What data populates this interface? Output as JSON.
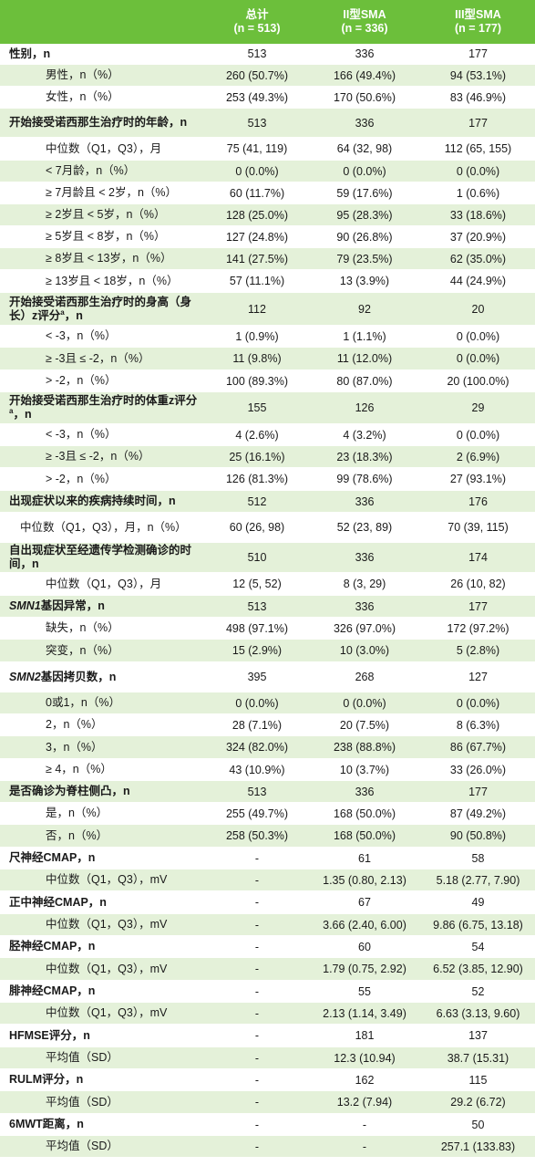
{
  "header": {
    "columns": [
      {
        "title": "总计",
        "n": "(n = 513)"
      },
      {
        "title": "II型SMA",
        "n": "(n = 336)"
      },
      {
        "title": "III型SMA",
        "n": "(n = 177)"
      }
    ]
  },
  "rows": [
    {
      "label": "性别，n",
      "kind": "sec",
      "values": [
        "513",
        "336",
        "177"
      ],
      "h": 23
    },
    {
      "label": "男性，n（%）",
      "kind": "sub",
      "values": [
        "260 (50.7%)",
        "166 (49.4%)",
        "94 (53.1%)"
      ],
      "h": 24,
      "shaded": true
    },
    {
      "label": "女性，n（%）",
      "kind": "sub",
      "values": [
        "253 (49.3%)",
        "170 (50.6%)",
        "83 (46.9%)"
      ],
      "h": 24
    },
    {
      "label": "开始接受诺西那生治疗时的年龄，n",
      "kind": "sec",
      "values": [
        "513",
        "336",
        "177"
      ],
      "h": 32,
      "shaded": true
    },
    {
      "label": "中位数（Q1，Q3），月",
      "kind": "sub",
      "values": [
        "75 (41, 119)",
        "64 (32, 98)",
        "112 (65, 155)"
      ],
      "h": 25
    },
    {
      "label": "< 7月龄，n（%）",
      "kind": "sub",
      "values": [
        "0 (0.0%)",
        "0 (0.0%)",
        "0 (0.0%)"
      ],
      "h": 24,
      "shaded": true
    },
    {
      "label": "≥ 7月龄且 < 2岁，n（%）",
      "kind": "sub",
      "values": [
        "60 (11.7%)",
        "59 (17.6%)",
        "1 (0.6%)"
      ],
      "h": 24
    },
    {
      "label": "≥ 2岁且 < 5岁，n（%）",
      "kind": "sub",
      "values": [
        "128 (25.0%)",
        "95 (28.3%)",
        "33 (18.6%)"
      ],
      "h": 24,
      "shaded": true
    },
    {
      "label": "≥ 5岁且 < 8岁，n（%）",
      "kind": "sub",
      "values": [
        "127 (24.8%)",
        "90 (26.8%)",
        "37 (20.9%)"
      ],
      "h": 24
    },
    {
      "label": "≥ 8岁且 < 13岁，n（%）",
      "kind": "sub",
      "values": [
        "141 (27.5%)",
        "79 (23.5%)",
        "62 (35.0%)"
      ],
      "h": 24,
      "shaded": true
    },
    {
      "label": "≥ 13岁且 < 18岁，n（%）",
      "kind": "sub",
      "values": [
        "57 (11.1%)",
        "13 (3.9%)",
        "44 (24.9%)"
      ],
      "h": 25
    },
    {
      "label": "开始接受诺西那生治疗时的身高（身长）z评分",
      "sup": "a",
      "label_tail": "，n",
      "kind": "sec",
      "values": [
        "112",
        "92",
        "20"
      ],
      "h": 36,
      "shaded": true
    },
    {
      "label": "< -3，n（%）",
      "kind": "sub",
      "values": [
        "1 (0.9%)",
        "1 (1.1%)",
        "0 (0.0%)"
      ],
      "h": 24
    },
    {
      "label": "≥ -3且 ≤ -2，n（%）",
      "kind": "sub",
      "values": [
        "11 (9.8%)",
        "11 (12.0%)",
        "0 (0.0%)"
      ],
      "h": 25,
      "shaded": true
    },
    {
      "label": "> -2，n（%）",
      "kind": "sub",
      "values": [
        "100 (89.3%)",
        "80 (87.0%)",
        "20 (100.0%)"
      ],
      "h": 24
    },
    {
      "label": "开始接受诺西那生治疗时的体重z评分",
      "sup": "a",
      "label_tail": "，n",
      "kind": "sec",
      "values": [
        "155",
        "126",
        "29"
      ],
      "h": 35,
      "shaded": true
    },
    {
      "label": "< -3，n（%）",
      "kind": "sub",
      "values": [
        "4 (2.6%)",
        "4 (3.2%)",
        "0 (0.0%)"
      ],
      "h": 24
    },
    {
      "label": "≥ -3且 ≤ -2，n（%）",
      "kind": "sub",
      "values": [
        "25 (16.1%)",
        "23 (18.3%)",
        "2 (6.9%)"
      ],
      "h": 24,
      "shaded": true
    },
    {
      "label": "> -2，n（%）",
      "kind": "sub",
      "values": [
        "126 (81.3%)",
        "99 (78.6%)",
        "27 (93.1%)"
      ],
      "h": 25
    },
    {
      "label": "出现症状以来的疾病持续时间，n",
      "kind": "sec",
      "values": [
        "512",
        "336",
        "176"
      ],
      "h": 24,
      "shaded": true
    },
    {
      "label": "中位数（Q1，Q3），月，n（%）",
      "kind": "sub",
      "wrap": true,
      "values": [
        "60 (26, 98)",
        "52 (23, 89)",
        "70 (39, 115)"
      ],
      "h": 33
    },
    {
      "label": "自出现症状至经遗传学检测确诊的时间，n",
      "kind": "sec",
      "values": [
        "510",
        "336",
        "174"
      ],
      "h": 33,
      "shaded": true
    },
    {
      "label": "中位数（Q1，Q3），月",
      "kind": "sub",
      "values": [
        "12 (5, 52)",
        "8 (3, 29)",
        "26 (10, 82)"
      ],
      "h": 25
    },
    {
      "label": "SMN1",
      "italic_prefix": true,
      "label_tail": "基因异常，n",
      "kind": "sec",
      "values": [
        "513",
        "336",
        "177"
      ],
      "h": 24,
      "shaded": true
    },
    {
      "label": "缺失，n（%）",
      "kind": "sub",
      "values": [
        "498 (97.1%)",
        "326 (97.0%)",
        "172 (97.2%)"
      ],
      "h": 24
    },
    {
      "label": "突变，n（%）",
      "kind": "sub",
      "values": [
        "15 (2.9%)",
        "10 (3.0%)",
        "5 (2.8%)"
      ],
      "h": 25,
      "shaded": true
    },
    {
      "label": "SMN2",
      "italic_prefix": true,
      "label_tail": "基因拷贝数，n",
      "kind": "sec",
      "values": [
        "395",
        "268",
        "127"
      ],
      "h": 33
    },
    {
      "label": "0或1，n（%）",
      "kind": "sub",
      "values": [
        "0 (0.0%)",
        "0 (0.0%)",
        "0 (0.0%)"
      ],
      "h": 24,
      "shaded": true
    },
    {
      "label": "2，n（%）",
      "kind": "sub",
      "values": [
        "28 (7.1%)",
        "20 (7.5%)",
        "8 (6.3%)"
      ],
      "h": 24
    },
    {
      "label": "3，n（%）",
      "kind": "sub",
      "values": [
        "324 (82.0%)",
        "238 (88.8%)",
        "86 (67.7%)"
      ],
      "h": 25,
      "shaded": true
    },
    {
      "label": "≥ 4，n（%）",
      "kind": "sub",
      "values": [
        "43 (10.9%)",
        "10 (3.7%)",
        "33 (26.0%)"
      ],
      "h": 24
    },
    {
      "label": "是否确诊为脊柱侧凸，n",
      "kind": "sec",
      "values": [
        "513",
        "336",
        "177"
      ],
      "h": 24,
      "shaded": true
    },
    {
      "label": "是，n（%）",
      "kind": "sub",
      "values": [
        "255 (49.7%)",
        "168 (50.0%)",
        "87 (49.2%)"
      ],
      "h": 24
    },
    {
      "label": "否，n（%）",
      "kind": "sub",
      "values": [
        "258 (50.3%)",
        "168 (50.0%)",
        "90 (50.8%)"
      ],
      "h": 25,
      "shaded": true
    },
    {
      "label": "尺神经CMAP，n",
      "kind": "sec",
      "values": [
        "-",
        "61",
        "58"
      ],
      "h": 24
    },
    {
      "label": "中位数（Q1，Q3），mV",
      "kind": "sub",
      "values": [
        "-",
        "1.35 (0.80, 2.13)",
        "5.18 (2.77, 7.90)"
      ],
      "h": 24,
      "shaded": true
    },
    {
      "label": "正中神经CMAP，n",
      "kind": "sec",
      "values": [
        "-",
        "67",
        "49"
      ],
      "h": 25
    },
    {
      "label": "中位数（Q1，Q3），mV",
      "kind": "sub",
      "values": [
        "-",
        "3.66 (2.40, 6.00)",
        "9.86 (6.75, 13.18)"
      ],
      "h": 24,
      "shaded": true
    },
    {
      "label": "胫神经CMAP，n",
      "kind": "sec",
      "values": [
        "-",
        "60",
        "54"
      ],
      "h": 24
    },
    {
      "label": "中位数（Q1，Q3），mV",
      "kind": "sub",
      "values": [
        "-",
        "1.79 (0.75, 2.92)",
        "6.52 (3.85, 12.90)"
      ],
      "h": 25,
      "shaded": true
    },
    {
      "label": "腓神经CMAP，n",
      "kind": "sec",
      "values": [
        "-",
        "55",
        "52"
      ],
      "h": 24
    },
    {
      "label": "中位数（Q1，Q3），mV",
      "kind": "sub",
      "values": [
        "-",
        "2.13 (1.14, 3.49)",
        "6.63 (3.13, 9.60)"
      ],
      "h": 24,
      "shaded": true
    },
    {
      "label": "HFMSE评分，n",
      "kind": "sec",
      "values": [
        "-",
        "181",
        "137"
      ],
      "h": 25
    },
    {
      "label": "平均值（SD）",
      "kind": "sub",
      "values": [
        "-",
        "12.3 (10.94)",
        "38.7 (15.31)"
      ],
      "h": 24,
      "shaded": true
    },
    {
      "label": "RULM评分，n",
      "kind": "sec",
      "values": [
        "-",
        "162",
        "115"
      ],
      "h": 24
    },
    {
      "label": "平均值（SD）",
      "kind": "sub",
      "values": [
        "-",
        "13.2 (7.94)",
        "29.2 (6.72)"
      ],
      "h": 25,
      "shaded": true
    },
    {
      "label": "6MWT距离，n",
      "kind": "sec",
      "values": [
        "-",
        "-",
        "50"
      ],
      "h": 24
    },
    {
      "label": "平均值（SD）",
      "kind": "sub",
      "values": [
        "-",
        "-",
        "257.1 (133.83)"
      ],
      "h": 24,
      "shaded": true
    }
  ]
}
